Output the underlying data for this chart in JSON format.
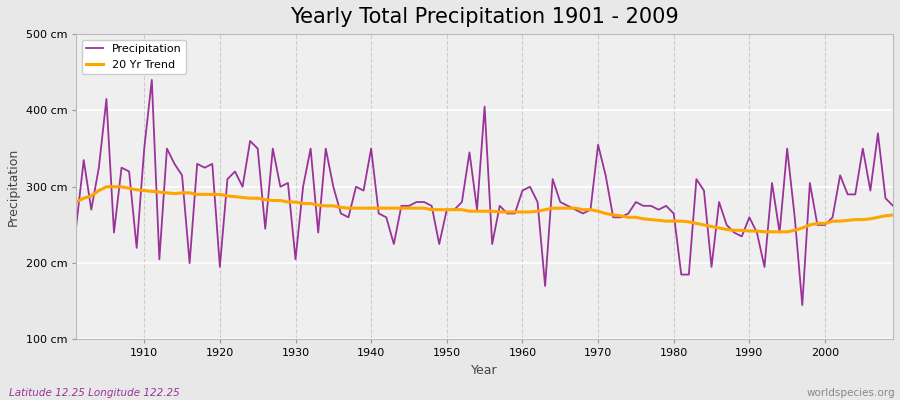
{
  "title": "Yearly Total Precipitation 1901 - 2009",
  "xlabel": "Year",
  "ylabel": "Precipitation",
  "subtitle": "Latitude 12.25 Longitude 122.25",
  "watermark": "worldspecies.org",
  "years": [
    1901,
    1902,
    1903,
    1904,
    1905,
    1906,
    1907,
    1908,
    1909,
    1910,
    1911,
    1912,
    1913,
    1914,
    1915,
    1916,
    1917,
    1918,
    1919,
    1920,
    1921,
    1922,
    1923,
    1924,
    1925,
    1926,
    1927,
    1928,
    1929,
    1930,
    1931,
    1932,
    1933,
    1934,
    1935,
    1936,
    1937,
    1938,
    1939,
    1940,
    1941,
    1942,
    1943,
    1944,
    1945,
    1946,
    1947,
    1948,
    1949,
    1950,
    1951,
    1952,
    1953,
    1954,
    1955,
    1956,
    1957,
    1958,
    1959,
    1960,
    1961,
    1962,
    1963,
    1964,
    1965,
    1966,
    1967,
    1968,
    1969,
    1970,
    1971,
    1972,
    1973,
    1974,
    1975,
    1976,
    1977,
    1978,
    1979,
    1980,
    1981,
    1982,
    1983,
    1984,
    1985,
    1986,
    1987,
    1988,
    1989,
    1990,
    1991,
    1992,
    1993,
    1994,
    1995,
    1996,
    1997,
    1998,
    1999,
    2000,
    2001,
    2002,
    2003,
    2004,
    2005,
    2006,
    2007,
    2008,
    2009
  ],
  "precip": [
    248,
    335,
    270,
    325,
    415,
    240,
    325,
    320,
    220,
    350,
    440,
    205,
    350,
    330,
    315,
    200,
    330,
    325,
    330,
    195,
    310,
    320,
    300,
    360,
    350,
    245,
    350,
    300,
    305,
    205,
    300,
    350,
    240,
    350,
    300,
    265,
    260,
    300,
    295,
    350,
    265,
    260,
    225,
    275,
    275,
    280,
    280,
    275,
    225,
    270,
    270,
    280,
    345,
    270,
    405,
    225,
    275,
    265,
    265,
    295,
    300,
    280,
    170,
    310,
    280,
    275,
    270,
    265,
    270,
    355,
    315,
    260,
    260,
    265,
    280,
    275,
    275,
    270,
    275,
    265,
    185,
    185,
    310,
    295,
    195,
    280,
    250,
    240,
    235,
    260,
    240,
    195,
    305,
    240,
    350,
    260,
    145,
    305,
    250,
    250,
    260,
    315,
    290,
    290,
    350,
    295,
    370,
    285,
    275
  ],
  "trend": [
    280,
    285,
    288,
    295,
    300,
    300,
    300,
    298,
    296,
    295,
    294,
    293,
    292,
    291,
    292,
    292,
    290,
    290,
    290,
    290,
    288,
    287,
    286,
    285,
    285,
    283,
    282,
    282,
    280,
    280,
    278,
    278,
    276,
    275,
    275,
    273,
    272,
    272,
    272,
    272,
    272,
    272,
    272,
    272,
    272,
    272,
    272,
    270,
    270,
    270,
    270,
    270,
    268,
    268,
    268,
    268,
    267,
    267,
    267,
    267,
    267,
    268,
    270,
    272,
    272,
    272,
    272,
    270,
    270,
    268,
    265,
    263,
    262,
    260,
    260,
    258,
    257,
    256,
    255,
    255,
    255,
    254,
    252,
    250,
    248,
    246,
    244,
    243,
    243,
    242,
    242,
    241,
    241,
    241,
    241,
    243,
    246,
    250,
    252,
    252,
    255,
    255,
    256,
    257,
    257,
    258,
    260,
    262,
    263
  ],
  "precip_color": "#993399",
  "trend_color": "#FFA500",
  "fig_bg_color": "#E8E8E8",
  "plot_bg_color": "#EFEFEF",
  "grid_color_h": "#FFFFFF",
  "grid_color_v": "#CCCCCC",
  "ylim": [
    100,
    500
  ],
  "xlim": [
    1901,
    2009
  ],
  "yticks": [
    100,
    200,
    300,
    400,
    500
  ],
  "ytick_labels": [
    "100 cm",
    "200 cm",
    "300 cm",
    "400 cm",
    "500 cm"
  ],
  "xticks": [
    1910,
    1920,
    1930,
    1940,
    1950,
    1960,
    1970,
    1980,
    1990,
    2000
  ],
  "title_fontsize": 15,
  "label_fontsize": 9,
  "tick_fontsize": 8,
  "subtitle_color": "#993399",
  "watermark_color": "#888888"
}
